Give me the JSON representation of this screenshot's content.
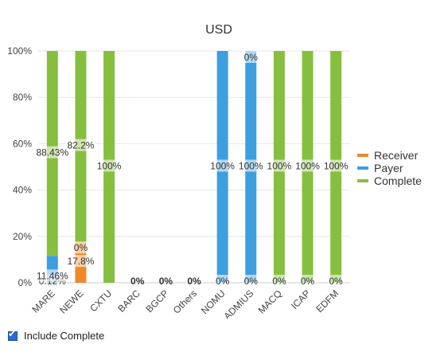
{
  "chart_data": {
    "type": "bar",
    "stacked": true,
    "title": "USD",
    "categories": [
      "MARE",
      "NEWE",
      "CXTU",
      "BARC",
      "BGCP",
      "Others",
      "NOMU",
      "ADMIUS",
      "MACQ",
      "ICAP",
      "EDFM"
    ],
    "series": [
      {
        "name": "Receiver",
        "color": "#f0882a",
        "values": [
          0.12,
          17.8,
          0,
          0,
          0,
          0,
          0,
          0,
          0,
          0,
          0
        ]
      },
      {
        "name": "Payer",
        "color": "#3d9ee0",
        "values": [
          11.46,
          0,
          0,
          0,
          0,
          0,
          100,
          100,
          0,
          0,
          0
        ]
      },
      {
        "name": "Complete",
        "color": "#86bf3f",
        "values": [
          88.43,
          82.2,
          100,
          0,
          0,
          0,
          0,
          0,
          100,
          100,
          100
        ]
      }
    ],
    "data_labels": [
      {
        "category": "MARE",
        "series": "Receiver",
        "text": "0.12%"
      },
      {
        "category": "MARE",
        "series": "Payer",
        "text": "11.46%"
      },
      {
        "category": "MARE",
        "series": "Complete",
        "text": "88.43%"
      },
      {
        "category": "NEWE",
        "series": "Receiver",
        "text": "17.8%"
      },
      {
        "category": "NEWE",
        "series": "Payer",
        "text": "0%"
      },
      {
        "category": "NEWE",
        "series": "Complete",
        "text": "82.2%"
      },
      {
        "category": "CXTU",
        "series": "Complete",
        "text": "100%"
      },
      {
        "category": "BARC",
        "series": "Complete",
        "text": "0%"
      },
      {
        "category": "BGCP",
        "series": "Complete",
        "text": "0%"
      },
      {
        "category": "Others",
        "series": "Complete",
        "text": "0%"
      },
      {
        "category": "NOMU",
        "series": "Receiver",
        "text": "0%"
      },
      {
        "category": "NOMU",
        "series": "Payer",
        "text": "100%"
      },
      {
        "category": "ADMIUS",
        "series": "Receiver",
        "text": "0%"
      },
      {
        "category": "ADMIUS",
        "series": "Payer",
        "text": "100%"
      },
      {
        "category": "ADMIUS",
        "series": "Complete",
        "text": "0%"
      },
      {
        "category": "MACQ",
        "series": "Receiver",
        "text": "0%"
      },
      {
        "category": "MACQ",
        "series": "Complete",
        "text": "100%"
      },
      {
        "category": "ICAP",
        "series": "Receiver",
        "text": "0%"
      },
      {
        "category": "ICAP",
        "series": "Complete",
        "text": "100%"
      },
      {
        "category": "EDFM",
        "series": "Receiver",
        "text": "0%"
      },
      {
        "category": "EDFM",
        "series": "Complete",
        "text": "100%"
      }
    ],
    "y_ticks": [
      "0%",
      "20%",
      "40%",
      "60%",
      "80%",
      "100%"
    ],
    "ylim": [
      0,
      100
    ],
    "grid": true,
    "legend_position": "right",
    "xlabel": "",
    "ylabel": ""
  },
  "controls": {
    "include_complete_label": "Include Complete",
    "include_complete_checked": true
  }
}
